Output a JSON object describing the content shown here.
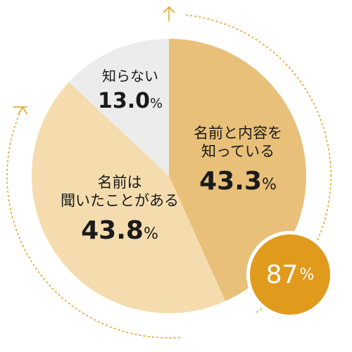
{
  "chart_data": {
    "type": "pie",
    "categories": [
      "名前と内容を知っている",
      "名前は聞いたことがある",
      "知らない"
    ],
    "names": [
      "名前と内容を\n知っている",
      "名前は\n聞いたことがある",
      "知らない"
    ],
    "values": [
      43.3,
      43.8,
      13.0
    ],
    "value_labels": [
      "43.3",
      "43.8",
      "13.0"
    ],
    "unit": "%",
    "colors": [
      "#e8c07a",
      "#f5dcae",
      "#ececec"
    ],
    "highlight": {
      "value": "87",
      "unit": "%",
      "color": "#e09a1c"
    },
    "arrow_color": "#e5a227"
  }
}
